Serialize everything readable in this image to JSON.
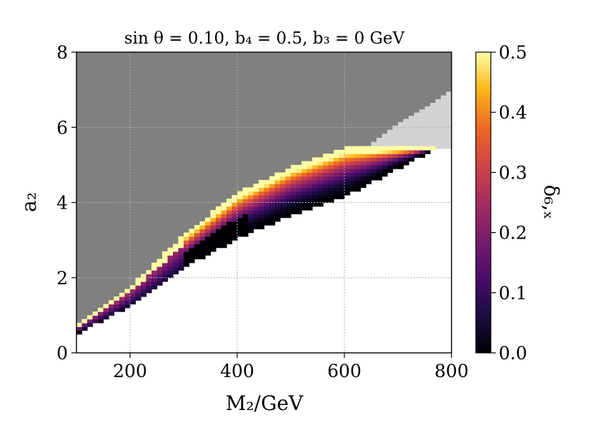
{
  "chart_data": {
    "type": "heatmap",
    "title": "sin θ = 0.10,  b₄ = 0.5,  b₃ = 0  GeV",
    "xlabel": "M₂/GeV",
    "ylabel": "a₂",
    "colorbar_label": "δ₆,ₓ",
    "xlim": [
      100,
      800
    ],
    "ylim": [
      0,
      8
    ],
    "xticks": [
      "200",
      "400",
      "600",
      "800"
    ],
    "yticks": [
      "0",
      "2",
      "4",
      "6",
      "8"
    ],
    "colorbar_ticks": [
      "0.0",
      "0.1",
      "0.2",
      "0.3",
      "0.4",
      "0.5"
    ],
    "clim": [
      0.0,
      0.5
    ],
    "colormap": "inferno",
    "grid": true,
    "regions": {
      "excluded_dark": {
        "color": "#808080",
        "boundary_a2_at_M2": [
          [
            100,
            0.7
          ],
          [
            200,
            1.7
          ],
          [
            300,
            3.1
          ],
          [
            400,
            4.2
          ],
          [
            500,
            4.9
          ],
          [
            600,
            5.4
          ],
          [
            640,
            5.45
          ],
          [
            800,
            5.45
          ]
        ]
      },
      "excluded_light": {
        "color": "#d3d3d3",
        "upper_boundary_a2_at_M2": [
          [
            640,
            5.45
          ],
          [
            700,
            6.1
          ],
          [
            760,
            6.6
          ],
          [
            800,
            7.0
          ]
        ]
      },
      "colored_band": {
        "upper_a2_at_M2": [
          [
            100,
            0.7
          ],
          [
            200,
            1.7
          ],
          [
            300,
            3.1
          ],
          [
            400,
            4.2
          ],
          [
            500,
            4.9
          ],
          [
            600,
            5.4
          ],
          [
            770,
            5.45
          ]
        ],
        "lower_a2_at_M2": [
          [
            100,
            0.55
          ],
          [
            200,
            1.3
          ],
          [
            300,
            2.3
          ],
          [
            400,
            3.1
          ],
          [
            500,
            3.7
          ],
          [
            600,
            4.2
          ],
          [
            700,
            4.95
          ],
          [
            770,
            5.45
          ]
        ]
      }
    }
  }
}
